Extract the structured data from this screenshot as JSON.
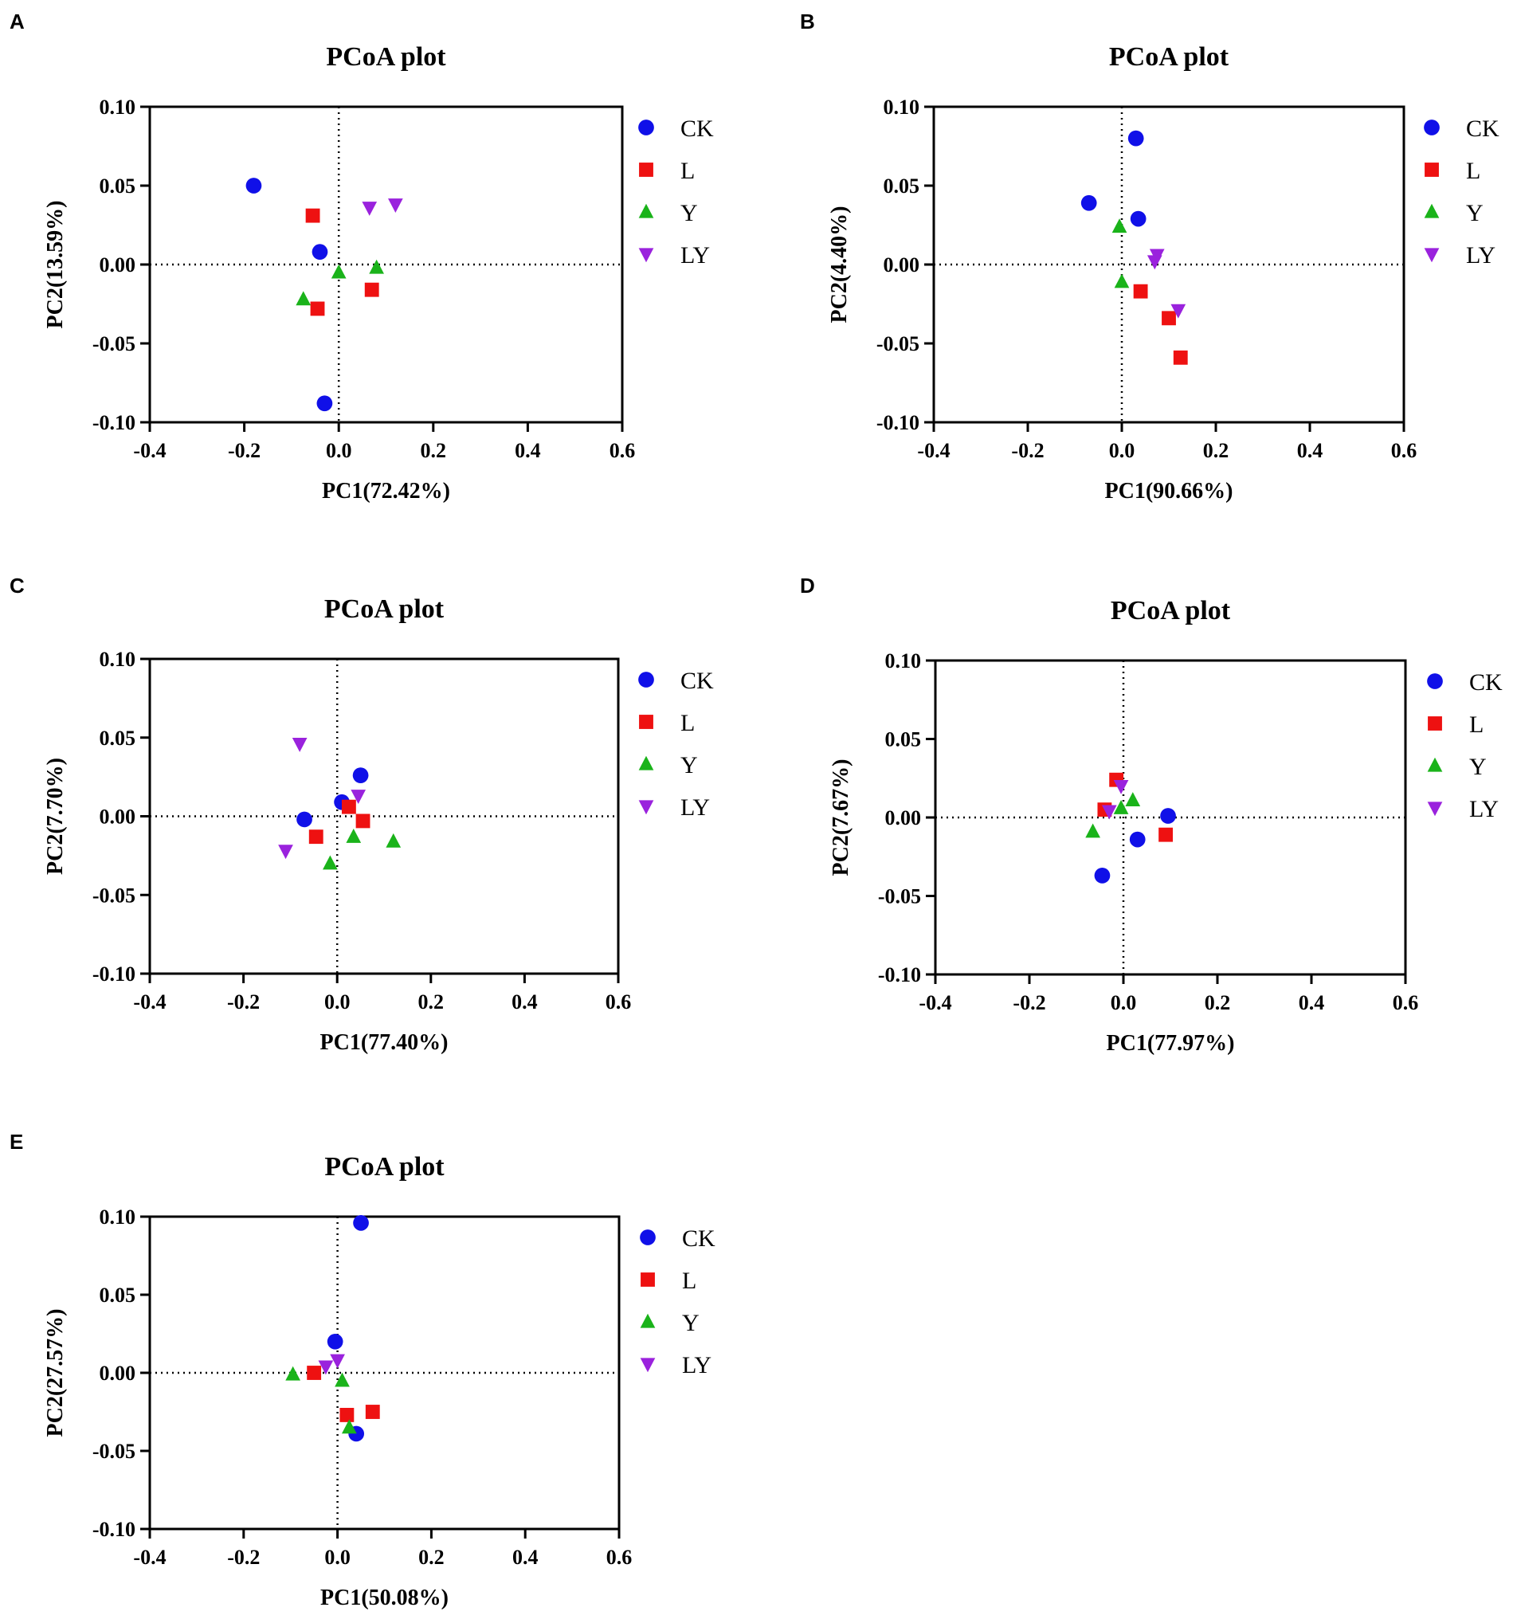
{
  "colors": {
    "CK": "#1010e8",
    "L": "#ee1111",
    "Y": "#1ab31a",
    "LY": "#9a22dd"
  },
  "series_names": [
    "CK",
    "L",
    "Y",
    "LY"
  ],
  "marker_icons": {
    "CK": "circle-marker-icon",
    "L": "square-marker-icon",
    "Y": "triangle-up-marker-icon",
    "LY": "triangle-down-marker-icon"
  },
  "chart_data": [
    {
      "panel": "A",
      "type": "scatter",
      "title": "PCoA plot",
      "xlabel": "PC1(72.42%)",
      "ylabel": "PC2(13.59%)",
      "xlim": [
        -0.4,
        0.6
      ],
      "ylim": [
        -0.1,
        0.1
      ],
      "xticks": [
        "-0.4",
        "-0.2",
        "0.0",
        "0.2",
        "0.4",
        "0.6"
      ],
      "yticks": [
        "-0.10",
        "-0.05",
        "0.00",
        "0.05",
        "0.10"
      ],
      "series": [
        {
          "name": "CK",
          "points": [
            [
              -0.18,
              0.05
            ],
            [
              -0.04,
              0.008
            ],
            [
              -0.03,
              -0.088
            ]
          ]
        },
        {
          "name": "L",
          "points": [
            [
              -0.055,
              0.031
            ],
            [
              -0.045,
              -0.028
            ],
            [
              0.07,
              -0.016
            ]
          ]
        },
        {
          "name": "Y",
          "points": [
            [
              -0.075,
              -0.022
            ],
            [
              0.0,
              -0.005
            ],
            [
              0.08,
              -0.002
            ]
          ]
        },
        {
          "name": "LY",
          "points": [
            [
              0.065,
              0.036
            ],
            [
              0.12,
              0.038
            ]
          ]
        }
      ]
    },
    {
      "panel": "B",
      "type": "scatter",
      "title": "PCoA plot",
      "xlabel": "PC1(90.66%)",
      "ylabel": "PC2(4.40%)",
      "xlim": [
        -0.4,
        0.6
      ],
      "ylim": [
        -0.1,
        0.1
      ],
      "xticks": [
        "-0.4",
        "-0.2",
        "0.0",
        "0.2",
        "0.4",
        "0.6"
      ],
      "yticks": [
        "-0.10",
        "-0.05",
        "0.00",
        "0.05",
        "0.10"
      ],
      "series": [
        {
          "name": "CK",
          "points": [
            [
              0.03,
              0.08
            ],
            [
              -0.07,
              0.039
            ],
            [
              0.035,
              0.029
            ]
          ]
        },
        {
          "name": "L",
          "points": [
            [
              0.04,
              -0.017
            ],
            [
              0.1,
              -0.034
            ],
            [
              0.125,
              -0.059
            ]
          ]
        },
        {
          "name": "Y",
          "points": [
            [
              -0.005,
              0.024
            ],
            [
              0.0,
              -0.011
            ]
          ]
        },
        {
          "name": "LY",
          "points": [
            [
              0.075,
              0.006
            ],
            [
              0.07,
              0.002
            ],
            [
              0.12,
              -0.029
            ]
          ]
        }
      ]
    },
    {
      "panel": "C",
      "type": "scatter",
      "title": "PCoA plot",
      "xlabel": "PC1(77.40%)",
      "ylabel": "PC2(7.70%)",
      "xlim": [
        -0.4,
        0.6
      ],
      "ylim": [
        -0.1,
        0.1
      ],
      "xticks": [
        "-0.4",
        "-0.2",
        "0.0",
        "0.2",
        "0.4",
        "0.6"
      ],
      "yticks": [
        "-0.10",
        "-0.05",
        "0.00",
        "0.05",
        "0.10"
      ],
      "series": [
        {
          "name": "CK",
          "points": [
            [
              0.05,
              0.026
            ],
            [
              0.01,
              0.009
            ],
            [
              -0.07,
              -0.002
            ]
          ]
        },
        {
          "name": "L",
          "points": [
            [
              0.025,
              0.006
            ],
            [
              0.055,
              -0.003
            ],
            [
              -0.045,
              -0.013
            ]
          ]
        },
        {
          "name": "Y",
          "points": [
            [
              0.035,
              -0.013
            ],
            [
              0.12,
              -0.016
            ],
            [
              -0.015,
              -0.03
            ]
          ]
        },
        {
          "name": "LY",
          "points": [
            [
              -0.08,
              0.046
            ],
            [
              0.045,
              0.013
            ],
            [
              -0.11,
              -0.022
            ]
          ]
        }
      ]
    },
    {
      "panel": "D",
      "type": "scatter",
      "title": "PCoA plot",
      "xlabel": "PC1(77.97%)",
      "ylabel": "PC2(7.67%)",
      "xlim": [
        -0.4,
        0.6
      ],
      "ylim": [
        -0.1,
        0.1
      ],
      "xticks": [
        "-0.4",
        "-0.2",
        "0.0",
        "0.2",
        "0.4",
        "0.6"
      ],
      "yticks": [
        "-0.10",
        "-0.05",
        "0.00",
        "0.05",
        "0.10"
      ],
      "series": [
        {
          "name": "CK",
          "points": [
            [
              0.095,
              0.001
            ],
            [
              0.03,
              -0.014
            ],
            [
              -0.045,
              -0.037
            ]
          ]
        },
        {
          "name": "L",
          "points": [
            [
              -0.015,
              0.024
            ],
            [
              -0.04,
              0.005
            ],
            [
              0.09,
              -0.011
            ]
          ]
        },
        {
          "name": "Y",
          "points": [
            [
              0.02,
              0.011
            ],
            [
              -0.005,
              0.006
            ],
            [
              -0.065,
              -0.009
            ]
          ]
        },
        {
          "name": "LY",
          "points": [
            [
              -0.005,
              0.02
            ],
            [
              -0.03,
              0.004
            ]
          ]
        }
      ]
    },
    {
      "panel": "E",
      "type": "scatter",
      "title": "PCoA plot",
      "xlabel": "PC1(50.08%)",
      "ylabel": "PC2(27.57%)",
      "xlim": [
        -0.4,
        0.6
      ],
      "ylim": [
        -0.1,
        0.1
      ],
      "xticks": [
        "-0.4",
        "-0.2",
        "0.0",
        "0.2",
        "0.4",
        "0.6"
      ],
      "yticks": [
        "-0.10",
        "-0.05",
        "0.00",
        "0.05",
        "0.10"
      ],
      "series": [
        {
          "name": "CK",
          "points": [
            [
              0.05,
              0.096
            ],
            [
              -0.005,
              0.02
            ],
            [
              0.04,
              -0.039
            ]
          ]
        },
        {
          "name": "L",
          "points": [
            [
              -0.05,
              0.0
            ],
            [
              0.02,
              -0.027
            ],
            [
              0.075,
              -0.025
            ]
          ]
        },
        {
          "name": "Y",
          "points": [
            [
              -0.095,
              -0.001
            ],
            [
              0.01,
              -0.005
            ],
            [
              0.025,
              -0.035
            ]
          ]
        },
        {
          "name": "LY",
          "points": [
            [
              -0.025,
              0.004
            ],
            [
              0.0,
              0.008
            ]
          ]
        }
      ]
    }
  ]
}
